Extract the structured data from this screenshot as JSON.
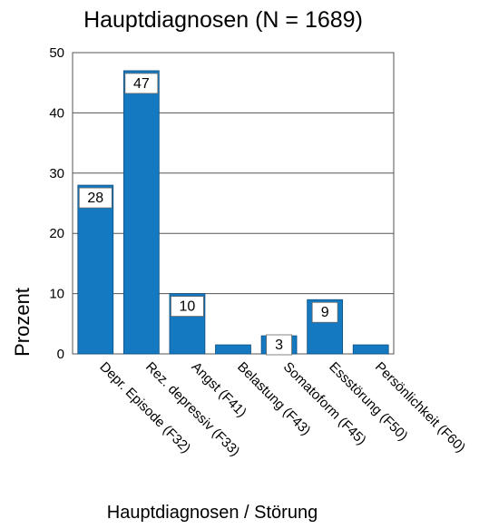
{
  "chart_data": {
    "type": "bar",
    "title": "Hauptdiagnosen (N = 1689)",
    "xlabel": "Hauptdiagnosen / Störung",
    "ylabel": "Prozent",
    "ylim": [
      0,
      50
    ],
    "yticks": [
      0,
      10,
      20,
      30,
      40,
      50
    ],
    "grid": true,
    "bar_color": "#1479c0",
    "categories": [
      "Depr. Episode (F32)",
      "Rez. depressiv (F33)",
      "Angst (F41)",
      "Belastung (F43)",
      "Somatoform (F45)",
      "Essstörung (F50)",
      "Persönlichkeit (F60)"
    ],
    "values": [
      28,
      47,
      10,
      1.5,
      3,
      9,
      1.5
    ],
    "data_labels": [
      "28",
      "47",
      "10",
      "",
      "3",
      "9",
      ""
    ]
  }
}
